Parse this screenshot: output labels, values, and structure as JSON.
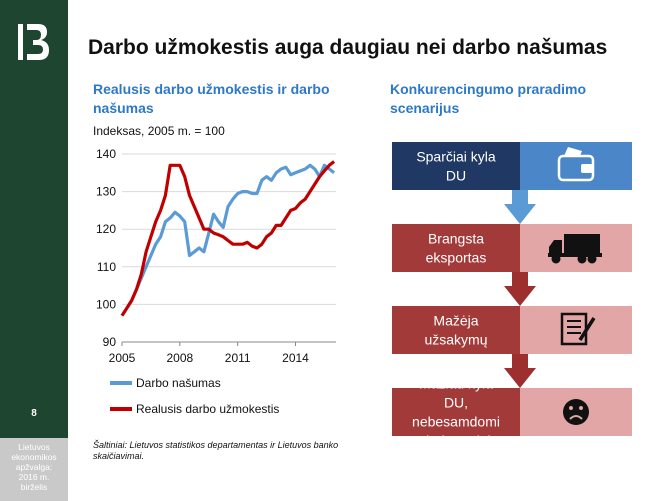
{
  "header": {
    "title": "Darbo užmokestis auga daugiau nei darbo našumas"
  },
  "sidebar": {
    "logo_icon": "bank-logo-icon",
    "page_number": "8",
    "footer_lines": [
      "Lietuvos",
      "ekonomikos",
      "apžvalga:",
      "2016 m.",
      "birželis"
    ]
  },
  "left_panel": {
    "subtitle": "Realusis darbo užmokestis ir darbo našumas",
    "index_note": "Indeksas, 2005 m. = 100",
    "source": "Šaltiniai: Lietuvos statistikos departamentas ir Lietuvos banko skaičiavimai."
  },
  "chart_data": {
    "type": "line",
    "ylabel": "",
    "xlabel": "",
    "ylim": [
      90,
      140
    ],
    "xlim": [
      2005,
      2016.1
    ],
    "yticks": [
      90,
      100,
      110,
      120,
      130,
      140
    ],
    "xticks": [
      2005,
      2008,
      2011,
      2014
    ],
    "grid": true,
    "legend_position": "bottom",
    "series": [
      {
        "name": "Darbo našumas",
        "color": "#5b9bd5",
        "x": [
          2005,
          2005.25,
          2005.5,
          2005.75,
          2006,
          2006.25,
          2006.5,
          2006.75,
          2007,
          2007.25,
          2007.5,
          2007.75,
          2008,
          2008.25,
          2008.5,
          2008.75,
          2009,
          2009.25,
          2009.5,
          2009.75,
          2010,
          2010.25,
          2010.5,
          2010.75,
          2011,
          2011.25,
          2011.5,
          2011.75,
          2012,
          2012.25,
          2012.5,
          2012.75,
          2013,
          2013.25,
          2013.5,
          2013.75,
          2014,
          2014.25,
          2014.5,
          2014.75,
          2015,
          2015.25,
          2015.5,
          2015.75,
          2016
        ],
        "values": [
          97,
          99,
          101,
          104,
          107,
          110,
          113,
          116,
          118,
          122,
          123,
          124.5,
          123.5,
          122,
          113,
          114,
          115,
          114,
          119,
          124,
          122,
          120.5,
          126,
          128,
          129.5,
          130,
          130,
          129.5,
          129.5,
          133,
          134,
          133,
          135,
          136,
          136.5,
          134.5,
          135,
          135.5,
          136,
          137,
          136,
          134,
          137,
          136,
          135
        ]
      },
      {
        "name": "Realusis darbo užmokestis",
        "color": "#c00000",
        "x": [
          2005,
          2005.25,
          2005.5,
          2005.75,
          2006,
          2006.25,
          2006.5,
          2006.75,
          2007,
          2007.25,
          2007.5,
          2007.75,
          2008,
          2008.25,
          2008.5,
          2008.75,
          2009,
          2009.25,
          2009.5,
          2009.75,
          2010,
          2010.25,
          2010.5,
          2010.75,
          2011,
          2011.25,
          2011.5,
          2011.75,
          2012,
          2012.25,
          2012.5,
          2012.75,
          2013,
          2013.25,
          2013.5,
          2013.75,
          2014,
          2014.25,
          2014.5,
          2014.75,
          2015,
          2015.25,
          2015.5,
          2015.75,
          2016
        ],
        "values": [
          97,
          99,
          101,
          104,
          108,
          114,
          118,
          122,
          125,
          129,
          137,
          137,
          137,
          134,
          129,
          126,
          123,
          120,
          120,
          119,
          118.5,
          118,
          117,
          116,
          116,
          116,
          116.5,
          115.5,
          115,
          116,
          118,
          119,
          121,
          121,
          123,
          125,
          125.5,
          127,
          128,
          130,
          132,
          134,
          135.5,
          137,
          138
        ]
      }
    ]
  },
  "right_panel": {
    "subtitle": "Konkurencingumo praradimo scenarijus",
    "steps": [
      {
        "label": "Sparčiai kyla DU",
        "icon": "wallet-icon",
        "label_color": "#1f3864",
        "icon_color": "#4a86c8",
        "arrow_color": "#5b9bd5"
      },
      {
        "label": "Brangsta eksportas",
        "icon": "truck-icon",
        "label_color": "#a33a3a",
        "icon_color": "#e3a6a6",
        "arrow_color": "#9e2f2f"
      },
      {
        "label": "Mažėja užsakymų",
        "icon": "order-form-icon",
        "label_color": "#a33a3a",
        "icon_color": "#e3a6a6",
        "arrow_color": "#9e2f2f"
      },
      {
        "label": "Mažiau kyla DU, nebesamdomi darbuotojai",
        "icon": "sad-face-icon",
        "label_color": "#a33a3a",
        "icon_color": "#e3a6a6",
        "arrow_color": ""
      }
    ]
  }
}
